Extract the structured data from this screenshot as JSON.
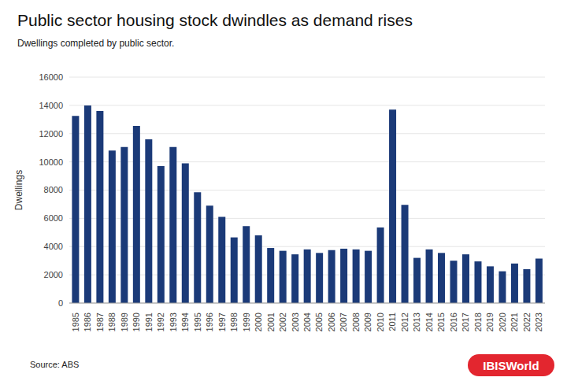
{
  "chart_data": {
    "type": "bar",
    "title": "Public sector housing stock dwindles as demand rises",
    "subtitle": "Dwellings completed by public sector.",
    "y_label": "Dwellings",
    "source": "Source: ABS",
    "logo": "IBISWorld",
    "categories": [
      "1985",
      "1986",
      "1987",
      "1988",
      "1989",
      "1990",
      "1991",
      "1992",
      "1993",
      "1994",
      "1995",
      "1996",
      "1997",
      "1998",
      "1999",
      "2000",
      "2001",
      "2002",
      "2003",
      "2004",
      "2005",
      "2006",
      "2007",
      "2008",
      "2009",
      "2010",
      "2011",
      "2012",
      "2013",
      "2014",
      "2015",
      "2016",
      "2017",
      "2018",
      "2019",
      "2020",
      "2021",
      "2022",
      "2023"
    ],
    "values": [
      13250,
      14000,
      13600,
      10800,
      11050,
      12550,
      11600,
      9700,
      11050,
      9900,
      7850,
      6900,
      6100,
      4650,
      5450,
      4800,
      3900,
      3700,
      3450,
      3800,
      3550,
      3750,
      3850,
      3800,
      3700,
      5350,
      13700,
      6950,
      3200,
      3800,
      3550,
      3000,
      3450,
      2950,
      2600,
      2250,
      2800,
      2400,
      3150
    ],
    "color": "#1b3a78",
    "ylim": [
      0,
      16000
    ],
    "yticks": [
      0,
      2000,
      4000,
      6000,
      8000,
      10000,
      12000,
      14000,
      16000
    ],
    "grid": true
  }
}
